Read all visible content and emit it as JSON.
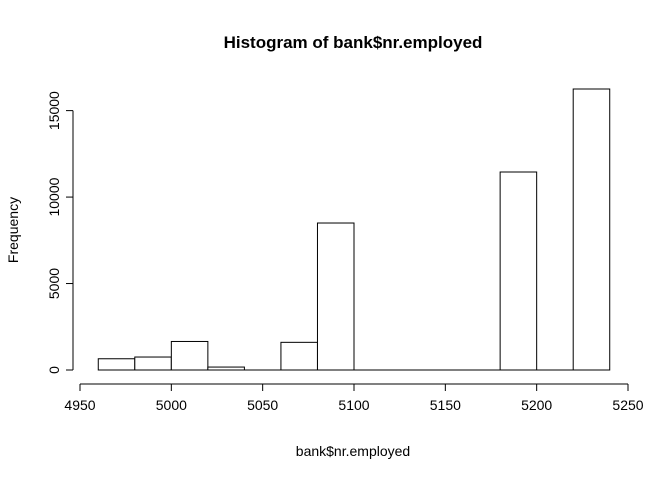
{
  "chart_data": {
    "type": "bar",
    "title": "Histogram of bank$nr.employed",
    "xlabel": "bank$nr.employed",
    "ylabel": "Frequency",
    "bins": [
      {
        "x0": 4960,
        "x1": 4980,
        "count": 650
      },
      {
        "x0": 4980,
        "x1": 5000,
        "count": 750
      },
      {
        "x0": 5000,
        "x1": 5020,
        "count": 1650
      },
      {
        "x0": 5020,
        "x1": 5040,
        "count": 170
      },
      {
        "x0": 5040,
        "x1": 5060,
        "count": 0
      },
      {
        "x0": 5060,
        "x1": 5080,
        "count": 1600
      },
      {
        "x0": 5080,
        "x1": 5100,
        "count": 8500
      },
      {
        "x0": 5100,
        "x1": 5120,
        "count": 0
      },
      {
        "x0": 5120,
        "x1": 5140,
        "count": 0
      },
      {
        "x0": 5140,
        "x1": 5160,
        "count": 0
      },
      {
        "x0": 5160,
        "x1": 5180,
        "count": 0
      },
      {
        "x0": 5180,
        "x1": 5200,
        "count": 11450
      },
      {
        "x0": 5200,
        "x1": 5220,
        "count": 0
      },
      {
        "x0": 5220,
        "x1": 5240,
        "count": 16250
      }
    ],
    "xlim": [
      4950,
      5250
    ],
    "ylim": [
      0,
      16250
    ],
    "x_ticks": [
      4950,
      5000,
      5050,
      5100,
      5150,
      5200,
      5250
    ],
    "y_ticks": [
      0,
      5000,
      10000,
      15000
    ],
    "grid": false,
    "bar_fill": "#ffffff",
    "bar_stroke": "#000000"
  }
}
